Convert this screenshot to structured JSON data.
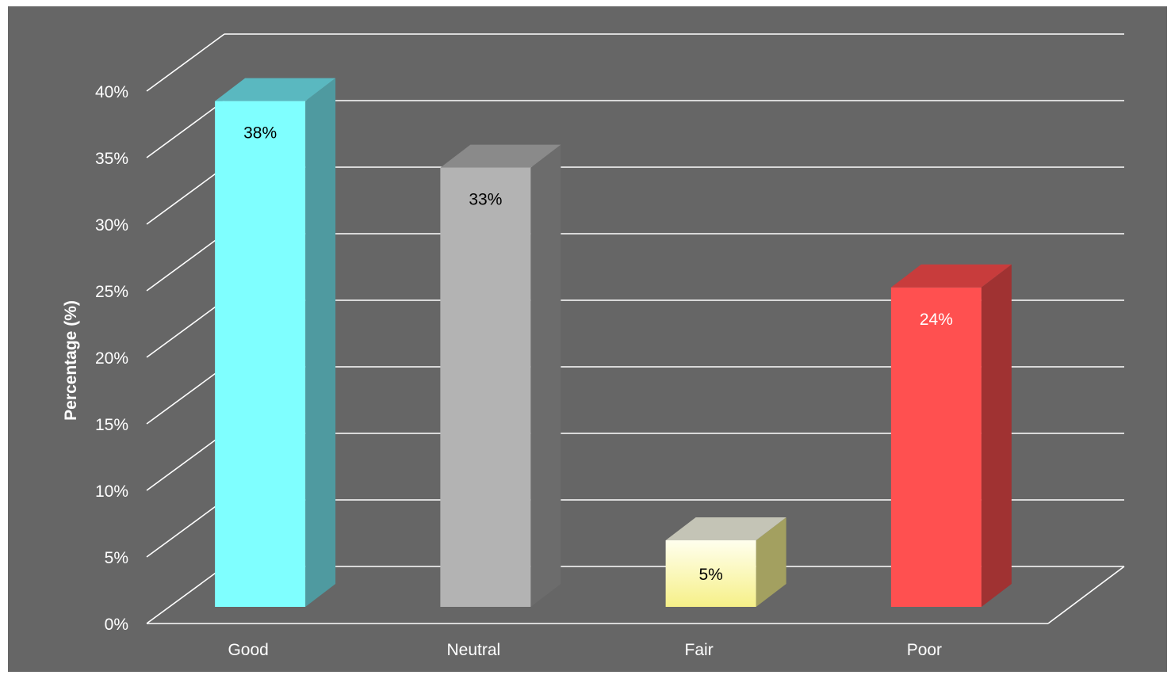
{
  "chart_data": {
    "type": "bar",
    "title": "",
    "xlabel": "",
    "ylabel": "Percentage (%)",
    "categories": [
      "Good",
      "Neutral",
      "Fair",
      "Poor"
    ],
    "values": [
      38,
      33,
      5,
      24
    ],
    "data_labels": [
      "38%",
      "33%",
      "5%",
      "24%"
    ],
    "ylim": [
      0,
      40
    ],
    "y_ticks": [
      0,
      5,
      10,
      15,
      20,
      25,
      30,
      35,
      40
    ],
    "y_tick_labels": [
      "0%",
      "5%",
      "10%",
      "15%",
      "20%",
      "25%",
      "30%",
      "35%",
      "40%"
    ],
    "grid": true,
    "legend": "none",
    "style": "3d",
    "colors": {
      "background": "#666666",
      "grid": "#ffffff",
      "text": "#ffffff",
      "bars": [
        {
          "front": "#7fffff",
          "side": "#4f9aa0",
          "top": "#5ab8c0",
          "label": "#000000"
        },
        {
          "front": "#b3b3b3",
          "side": "#6c6c6c",
          "top": "#8a8a8a",
          "label": "#000000"
        },
        {
          "front": "#ffffcc",
          "side": "#a3a060",
          "top": "#c4c4b6",
          "label": "#000000"
        },
        {
          "front": "#ff5050",
          "side": "#a03232",
          "top": "#c83c3c",
          "label": "#ffffff"
        }
      ]
    }
  }
}
